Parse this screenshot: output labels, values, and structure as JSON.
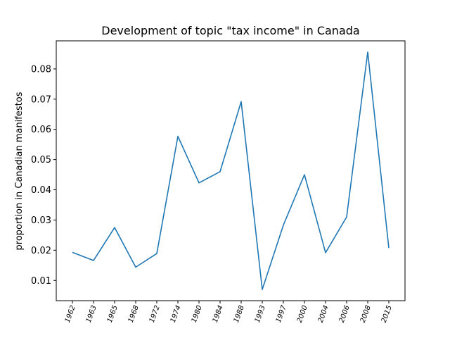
{
  "chart_data": {
    "type": "line",
    "title": "Development of topic \"tax income\" in Canada",
    "xlabel": "",
    "ylabel": "proportion in Canadian manifestos",
    "categories": [
      "1962",
      "1963",
      "1965",
      "1968",
      "1972",
      "1974",
      "1980",
      "1984",
      "1988",
      "1993",
      "1997",
      "2000",
      "2004",
      "2006",
      "2008",
      "2015"
    ],
    "values": [
      0.0193,
      0.0166,
      0.0275,
      0.0144,
      0.0189,
      0.0577,
      0.0423,
      0.046,
      0.0692,
      0.007,
      0.0283,
      0.045,
      0.0192,
      0.031,
      0.0856,
      0.0207
    ],
    "yticks": [
      "0.01",
      "0.02",
      "0.03",
      "0.04",
      "0.05",
      "0.06",
      "0.07",
      "0.08"
    ],
    "ylim": [
      0.0033,
      0.0893
    ],
    "grid": false,
    "colors": {
      "line": "#1f77b4",
      "axis": "#000000"
    }
  }
}
